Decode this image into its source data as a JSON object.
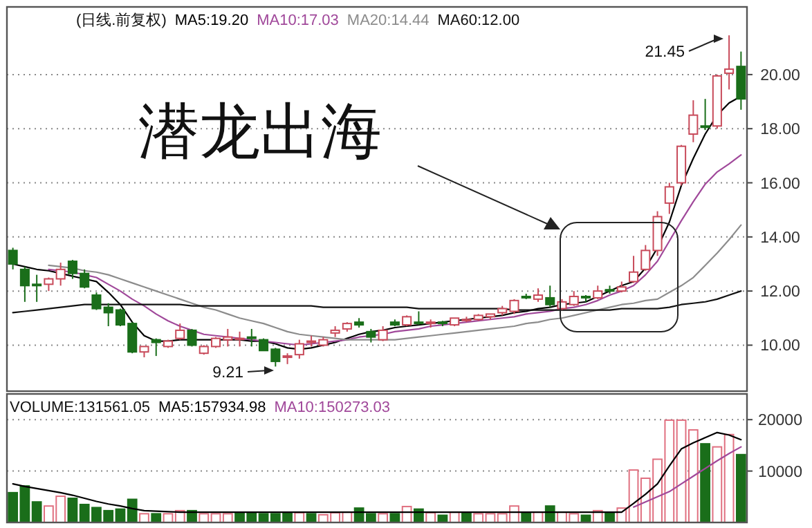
{
  "chart_data": [
    {
      "type": "candlestick",
      "title": "(日线.前复权)",
      "ylim": [
        8.3,
        22.5
      ],
      "yticks": [
        {
          "value": 10,
          "label": "10.00"
        },
        {
          "value": 12,
          "label": "12.00"
        },
        {
          "value": 14,
          "label": "14.00"
        },
        {
          "value": 16,
          "label": "16.00"
        },
        {
          "value": 18,
          "label": "18.00"
        },
        {
          "value": 20,
          "label": "20.00"
        }
      ],
      "tick_labels": "y",
      "grid": "y",
      "categories": [
        null,
        null,
        null,
        null,
        null,
        null,
        null,
        null,
        null,
        null,
        null,
        null,
        null,
        null,
        null,
        null,
        null,
        null,
        null,
        null,
        null,
        null,
        null,
        null,
        null,
        null,
        null,
        null,
        null,
        null,
        null,
        null,
        null,
        null,
        null,
        null,
        null,
        null,
        null,
        null,
        null,
        null,
        null,
        null,
        null,
        null,
        null,
        null,
        null,
        null,
        null,
        null,
        null,
        null,
        null,
        null,
        null,
        null,
        null,
        null,
        null,
        null
      ],
      "ohlc": [
        [
          13.5,
          13.6,
          12.8,
          13.0
        ],
        [
          12.8,
          12.9,
          11.6,
          12.2
        ],
        [
          12.25,
          12.6,
          11.6,
          12.2
        ],
        [
          12.25,
          12.5,
          12.0,
          12.45
        ],
        [
          12.45,
          13.05,
          12.2,
          12.8
        ],
        [
          13.1,
          13.15,
          12.45,
          12.65
        ],
        [
          12.65,
          12.8,
          12.1,
          12.15
        ],
        [
          11.85,
          11.95,
          11.3,
          11.35
        ],
        [
          11.4,
          11.55,
          10.7,
          11.2
        ],
        [
          11.3,
          11.35,
          10.7,
          10.75
        ],
        [
          10.8,
          10.85,
          9.7,
          9.75
        ],
        [
          9.75,
          9.95,
          9.55,
          9.95
        ],
        [
          10.2,
          10.25,
          9.6,
          10.1
        ],
        [
          9.95,
          10.2,
          9.9,
          10.15
        ],
        [
          10.25,
          10.8,
          10.2,
          10.55
        ],
        [
          10.55,
          10.6,
          9.95,
          10.0
        ],
        [
          9.7,
          10.0,
          9.65,
          9.95
        ],
        [
          9.95,
          10.3,
          9.9,
          10.25
        ],
        [
          10.2,
          10.6,
          9.95,
          10.3
        ],
        [
          10.25,
          10.5,
          9.95,
          10.25
        ],
        [
          10.3,
          10.6,
          9.95,
          10.25
        ],
        [
          10.2,
          10.25,
          9.8,
          9.8
        ],
        [
          9.85,
          9.9,
          9.21,
          9.4
        ],
        [
          9.55,
          9.7,
          9.3,
          9.6
        ],
        [
          9.65,
          10.2,
          9.5,
          10.05
        ],
        [
          10.1,
          10.35,
          9.95,
          10.15
        ],
        [
          10.0,
          10.3,
          9.95,
          10.2
        ],
        [
          10.45,
          10.7,
          10.3,
          10.55
        ],
        [
          10.6,
          10.85,
          10.5,
          10.8
        ],
        [
          10.85,
          11.0,
          10.65,
          10.75
        ],
        [
          10.5,
          10.6,
          10.1,
          10.3
        ],
        [
          10.2,
          10.7,
          10.15,
          10.55
        ],
        [
          10.85,
          10.95,
          10.7,
          10.75
        ],
        [
          10.75,
          11.1,
          10.7,
          11.05
        ],
        [
          10.85,
          11.25,
          10.75,
          10.8
        ],
        [
          10.8,
          10.95,
          10.65,
          10.85
        ],
        [
          10.85,
          10.9,
          10.7,
          10.8
        ],
        [
          10.75,
          11.0,
          10.7,
          11.0
        ],
        [
          10.95,
          11.05,
          10.85,
          10.95
        ],
        [
          10.95,
          11.15,
          10.9,
          11.1
        ],
        [
          11.05,
          11.15,
          10.95,
          11.15
        ],
        [
          11.2,
          11.45,
          11.1,
          11.35
        ],
        [
          11.25,
          11.7,
          11.15,
          11.65
        ],
        [
          11.8,
          11.9,
          11.7,
          11.75
        ],
        [
          11.7,
          12.1,
          11.6,
          11.85
        ],
        [
          11.75,
          12.2,
          11.4,
          11.5
        ],
        [
          11.35,
          11.7,
          11.3,
          11.6
        ],
        [
          11.5,
          12.0,
          11.45,
          11.8
        ],
        [
          11.8,
          11.85,
          11.6,
          11.75
        ],
        [
          11.75,
          12.2,
          11.7,
          12.0
        ],
        [
          12.05,
          12.2,
          11.9,
          12.0
        ],
        [
          12.0,
          12.35,
          11.95,
          12.15
        ],
        [
          12.35,
          13.3,
          12.3,
          12.7
        ],
        [
          12.8,
          13.7,
          12.75,
          13.5
        ],
        [
          13.5,
          14.95,
          13.3,
          14.75
        ],
        [
          15.25,
          16.0,
          14.85,
          15.85
        ],
        [
          16.0,
          17.4,
          15.9,
          17.35
        ],
        [
          17.8,
          19.05,
          17.5,
          18.5
        ],
        [
          18.1,
          19.1,
          17.95,
          18.05
        ],
        [
          18.1,
          20.0,
          18.0,
          19.95
        ],
        [
          20.05,
          21.45,
          19.45,
          20.2
        ],
        [
          20.3,
          20.85,
          18.7,
          19.1
        ]
      ],
      "colors": [
        "#1a6e1a",
        "#1a6e1a",
        "#1a6e1a",
        "#c84a5a",
        "#c84a5a",
        "#1a6e1a",
        "#1a6e1a",
        "#1a6e1a",
        "#1a6e1a",
        "#1a6e1a",
        "#1a6e1a",
        "#c84a5a",
        "#1a6e1a",
        "#c84a5a",
        "#c84a5a",
        "#1a6e1a",
        "#c84a5a",
        "#c84a5a",
        "#c84a5a",
        "#c84a5a",
        "#1a6e1a",
        "#1a6e1a",
        "#1a6e1a",
        "#c84a5a",
        "#c84a5a",
        "#c84a5a",
        "#c84a5a",
        "#c84a5a",
        "#c84a5a",
        "#1a6e1a",
        "#1a6e1a",
        "#c84a5a",
        "#1a6e1a",
        "#c84a5a",
        "#1a6e1a",
        "#c84a5a",
        "#1a6e1a",
        "#c84a5a",
        "#c84a5a",
        "#c84a5a",
        "#c84a5a",
        "#c84a5a",
        "#c84a5a",
        "#1a6e1a",
        "#c84a5a",
        "#1a6e1a",
        "#c84a5a",
        "#c84a5a",
        "#1a6e1a",
        "#c84a5a",
        "#1a6e1a",
        "#c84a5a",
        "#c84a5a",
        "#c84a5a",
        "#c84a5a",
        "#c84a5a",
        "#c84a5a",
        "#c84a5a",
        "#1a6e1a",
        "#c84a5a",
        "#c84a5a",
        "#1a6e1a"
      ],
      "series": [
        {
          "type": "line",
          "name": "MA5:19.20",
          "color": "#000000",
          "values": [
            13.0,
            12.9,
            12.8,
            12.75,
            12.65,
            12.55,
            12.45,
            12.35,
            11.95,
            11.5,
            10.85,
            10.35,
            10.15,
            10.15,
            10.2,
            10.2,
            10.2,
            10.2,
            10.2,
            10.2,
            10.15,
            10.15,
            10.05,
            9.9,
            9.85,
            9.9,
            10.0,
            10.1,
            10.25,
            10.4,
            10.5,
            10.55,
            10.65,
            10.7,
            10.75,
            10.8,
            10.85,
            10.9,
            10.95,
            11.0,
            11.05,
            11.1,
            11.2,
            11.25,
            11.35,
            11.4,
            11.5,
            11.55,
            11.6,
            11.8,
            12.0,
            12.2,
            12.35,
            12.85,
            13.6,
            14.55,
            15.9,
            16.9,
            17.8,
            18.5,
            18.95,
            19.2
          ]
        },
        {
          "type": "line",
          "name": "MA10:17.03",
          "color": "#a0489a",
          "values": [
            null,
            null,
            null,
            12.8,
            12.75,
            12.7,
            12.6,
            12.5,
            12.25,
            12.0,
            11.7,
            11.45,
            11.15,
            10.9,
            10.7,
            10.55,
            10.4,
            10.35,
            10.3,
            10.25,
            10.2,
            10.15,
            10.1,
            10.05,
            10.0,
            10.05,
            10.1,
            10.15,
            10.2,
            10.3,
            10.35,
            10.4,
            10.5,
            10.55,
            10.6,
            10.7,
            10.75,
            10.8,
            10.85,
            10.9,
            10.95,
            11.0,
            11.05,
            11.15,
            11.2,
            11.25,
            11.35,
            11.4,
            11.5,
            11.65,
            11.85,
            12.0,
            12.2,
            12.6,
            13.1,
            13.85,
            14.6,
            15.3,
            15.95,
            16.4,
            16.7,
            17.03
          ]
        },
        {
          "type": "line",
          "name": "MA20:14.44",
          "color": "#8c8c8c",
          "values": [
            null,
            null,
            null,
            12.95,
            12.9,
            12.85,
            12.75,
            12.7,
            12.6,
            12.45,
            12.3,
            12.15,
            12.0,
            11.85,
            11.7,
            11.55,
            11.4,
            11.3,
            11.15,
            11.0,
            10.9,
            10.8,
            10.65,
            10.5,
            10.4,
            10.35,
            10.3,
            10.25,
            10.2,
            10.2,
            10.2,
            10.2,
            10.2,
            10.25,
            10.3,
            10.35,
            10.4,
            10.45,
            10.5,
            10.55,
            10.6,
            10.65,
            10.7,
            10.8,
            10.85,
            10.95,
            11.0,
            11.1,
            11.2,
            11.3,
            11.4,
            11.5,
            11.55,
            11.65,
            11.7,
            11.95,
            12.2,
            12.5,
            12.95,
            13.4,
            13.9,
            14.44
          ]
        },
        {
          "type": "line",
          "name": "MA60:12.00",
          "color": "#111111",
          "values": [
            11.2,
            11.25,
            11.3,
            11.35,
            11.4,
            11.45,
            11.5,
            11.5,
            11.5,
            11.5,
            11.5,
            11.5,
            11.5,
            11.5,
            11.5,
            11.45,
            11.45,
            11.45,
            11.45,
            11.45,
            11.45,
            11.45,
            11.45,
            11.45,
            11.45,
            11.45,
            11.4,
            11.4,
            11.4,
            11.4,
            11.4,
            11.4,
            11.4,
            11.4,
            11.35,
            11.35,
            11.35,
            11.35,
            11.35,
            11.35,
            11.35,
            11.35,
            11.3,
            11.3,
            11.3,
            11.3,
            11.3,
            11.3,
            11.3,
            11.3,
            11.3,
            11.35,
            11.35,
            11.35,
            11.35,
            11.4,
            11.5,
            11.55,
            11.6,
            11.7,
            11.85,
            12.0
          ]
        }
      ],
      "annotations": [
        "潜龙出海",
        "21.45",
        "9.21"
      ]
    },
    {
      "type": "bar",
      "title": "VOLUME:131561.05",
      "ylim": [
        0,
        25000
      ],
      "yticks": [
        10000,
        20000
      ],
      "tick_labels": "y",
      "grid": "y",
      "categories": [
        null,
        null,
        null,
        null,
        null,
        null,
        null,
        null,
        null,
        null,
        null,
        null,
        null,
        null,
        null,
        null,
        null,
        null,
        null,
        null,
        null,
        null,
        null,
        null,
        null,
        null,
        null,
        null,
        null,
        null,
        null,
        null,
        null,
        null,
        null,
        null,
        null,
        null,
        null,
        null,
        null,
        null,
        null,
        null,
        null,
        null,
        null,
        null,
        null,
        null,
        null,
        null,
        null,
        null,
        null,
        null,
        null,
        null,
        null,
        null,
        null,
        null
      ],
      "series": [
        {
          "values": [
            5800,
            7100,
            4000,
            3200,
            5100,
            4700,
            3500,
            2900,
            2300,
            2600,
            4500,
            1700,
            1700,
            1700,
            2300,
            2300,
            1700,
            1700,
            1700,
            2000,
            1900,
            1700,
            1700,
            2000,
            1900,
            1700,
            1500,
            1900,
            2000,
            2800,
            1700,
            1700,
            1700,
            3100,
            2600,
            1900,
            1400,
            2000,
            1900,
            1700,
            1700,
            1700,
            3200,
            2000,
            2000,
            3200,
            2000,
            1700,
            1400,
            2300,
            2000,
            2800,
            10200,
            8600,
            12300,
            19900,
            19900,
            18000,
            15300,
            14700,
            17100,
            13200
          ],
          "colors": [
            "#1a6e1a",
            "#1a6e1a",
            "#1a6e1a",
            "#e07080",
            "#e07080",
            "#1a6e1a",
            "#1a6e1a",
            "#1a6e1a",
            "#1a6e1a",
            "#1a6e1a",
            "#1a6e1a",
            "#e07080",
            "#1a6e1a",
            "#e07080",
            "#e07080",
            "#1a6e1a",
            "#e07080",
            "#e07080",
            "#e07080",
            "#1a6e1a",
            "#1a6e1a",
            "#1a6e1a",
            "#1a6e1a",
            "#1a6e1a",
            "#e07080",
            "#1a6e1a",
            "#e07080",
            "#e07080",
            "#e07080",
            "#1a6e1a",
            "#1a6e1a",
            "#e07080",
            "#1a6e1a",
            "#e07080",
            "#1a6e1a",
            "#e07080",
            "#1a6e1a",
            "#e07080",
            "#1a6e1a",
            "#e07080",
            "#e07080",
            "#e07080",
            "#e07080",
            "#1a6e1a",
            "#e07080",
            "#1a6e1a",
            "#e07080",
            "#e07080",
            "#1a6e1a",
            "#e07080",
            "#1a6e1a",
            "#e07080",
            "#e07080",
            "#e07080",
            "#e07080",
            "#e07080",
            "#e07080",
            "#e07080",
            "#1a6e1a",
            "#e07080",
            "#e07080",
            "#1a6e1a"
          ]
        },
        {
          "type": "line",
          "name": "MA5:157934.98",
          "color": "#000000",
          "values": [
            7500,
            7000,
            6600,
            6200,
            5800,
            5300,
            4700,
            4100,
            3600,
            3200,
            2700,
            2300,
            2200,
            2100,
            2000,
            2000,
            2000,
            2000,
            2000,
            2000,
            2000,
            2000,
            2000,
            2000,
            2000,
            2000,
            2000,
            2000,
            2000,
            2000,
            2000,
            2000,
            2000,
            2000,
            2000,
            2000,
            2000,
            2000,
            2000,
            2000,
            2000,
            2000,
            2000,
            2000,
            2000,
            2000,
            2000,
            2000,
            2000,
            2000,
            2000,
            2000,
            3700,
            5500,
            7500,
            11000,
            14300,
            15500,
            16500,
            17500,
            17000,
            16100
          ]
        },
        {
          "type": "line",
          "name": "MA10:150273.03",
          "color": "#a0489a",
          "values": [
            null,
            null,
            null,
            null,
            null,
            null,
            null,
            null,
            null,
            null,
            null,
            null,
            null,
            null,
            null,
            null,
            null,
            null,
            null,
            null,
            null,
            null,
            null,
            null,
            null,
            null,
            null,
            null,
            null,
            null,
            null,
            null,
            null,
            null,
            null,
            null,
            null,
            null,
            null,
            null,
            null,
            null,
            null,
            null,
            null,
            null,
            null,
            null,
            null,
            null,
            null,
            null,
            3000,
            4000,
            5000,
            6000,
            7500,
            9000,
            10500,
            12000,
            13400,
            14700
          ]
        }
      ]
    }
  ]
}
